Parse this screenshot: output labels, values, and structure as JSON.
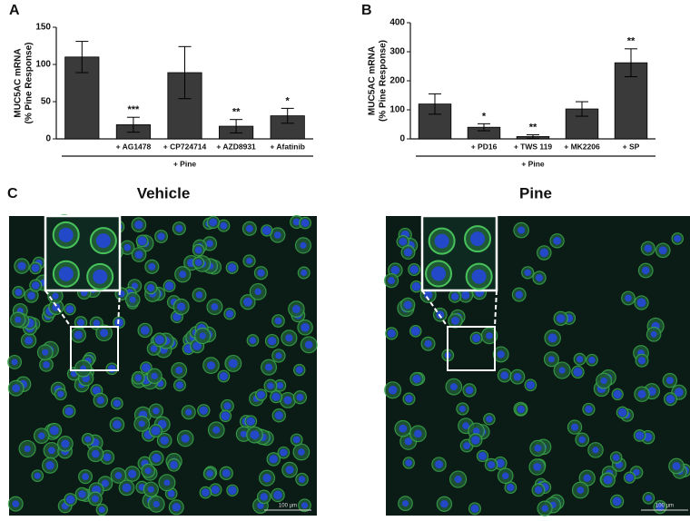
{
  "panels": {
    "a": "A",
    "b": "B",
    "c": "C"
  },
  "images": [
    {
      "title": "Vehicle",
      "scale_label": "100 µm"
    },
    {
      "title": "Pine",
      "scale_label": "100 µm"
    }
  ],
  "chart_data": [
    {
      "type": "bar",
      "panel": "A",
      "ylabel": [
        "MUC5AC mRNA",
        "(% Pine Response)"
      ],
      "categories": [
        null,
        "+ AG1478",
        "+ CP724714",
        "+ AZD8931",
        "+ Afatinib"
      ],
      "values": [
        110,
        19,
        89,
        17,
        31
      ],
      "errors": [
        21,
        10,
        35,
        9,
        10
      ],
      "significance": [
        null,
        "***",
        null,
        "**",
        "*"
      ],
      "group_label": "+ Pine",
      "color": "#3a3a3a",
      "ylim": [
        0,
        150
      ],
      "yticks": [
        0,
        50,
        100,
        150
      ]
    },
    {
      "type": "bar",
      "panel": "B",
      "ylabel": [
        "MUC5AC mRNA",
        "(% Pine Response)"
      ],
      "categories": [
        null,
        "+ PD16",
        "+ TWS 119",
        "+ MK2206",
        "+ SP"
      ],
      "values": [
        120,
        40,
        8,
        103,
        262
      ],
      "errors": [
        35,
        12,
        6,
        25,
        48
      ],
      "significance": [
        null,
        "*",
        "**",
        null,
        "**"
      ],
      "group_label": "+ Pine",
      "color": "#3a3a3a",
      "ylim": [
        0,
        400
      ],
      "yticks": [
        0,
        100,
        200,
        300,
        400
      ]
    }
  ]
}
